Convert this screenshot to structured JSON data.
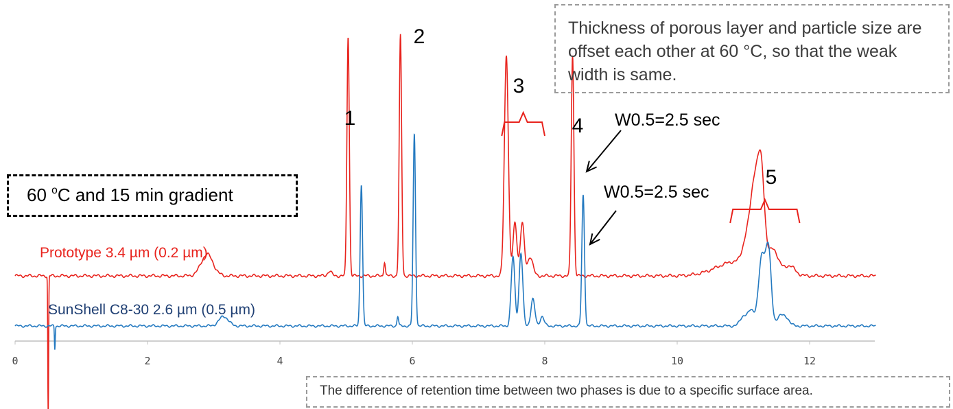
{
  "chart_data": {
    "type": "line",
    "title": "",
    "xlabel": "",
    "ylabel": "",
    "xlim": [
      0,
      13
    ],
    "x_ticks": [
      0,
      2,
      4,
      6,
      8,
      10,
      12
    ],
    "grid": false,
    "series": [
      {
        "name": "Prototype 3.4 µm (0.2 µm)",
        "color": "#e8231d",
        "baseline": 0.0,
        "peaks": [
          {
            "t": 0.5,
            "h": -0.6,
            "w": 0.006
          },
          {
            "t": 2.9,
            "h": 0.09,
            "w": 0.09
          },
          {
            "t": 4.75,
            "h": 0.02,
            "w": 0.03
          },
          {
            "t": 5.03,
            "h": 1.0,
            "w": 0.018
          },
          {
            "t": 5.58,
            "h": 0.06,
            "w": 0.012
          },
          {
            "t": 5.82,
            "h": 1.0,
            "w": 0.018
          },
          {
            "t": 7.42,
            "h": 0.92,
            "w": 0.03
          },
          {
            "t": 7.55,
            "h": 0.22,
            "w": 0.03
          },
          {
            "t": 7.66,
            "h": 0.22,
            "w": 0.03
          },
          {
            "t": 7.78,
            "h": 0.08,
            "w": 0.04
          },
          {
            "t": 8.42,
            "h": 0.92,
            "w": 0.02
          },
          {
            "t": 10.9,
            "h": 0.06,
            "w": 0.3
          },
          {
            "t": 11.05,
            "h": 0.1,
            "w": 0.06
          },
          {
            "t": 11.17,
            "h": 0.33,
            "w": 0.06
          },
          {
            "t": 11.27,
            "h": 0.38,
            "w": 0.05
          },
          {
            "t": 11.45,
            "h": 0.1,
            "w": 0.08
          },
          {
            "t": 11.7,
            "h": 0.04,
            "w": 0.08
          }
        ]
      },
      {
        "name": "SunShell C8-30 2.6 µm (0.5 µm)",
        "color": "#2379c0",
        "baseline": -0.33,
        "peaks": [
          {
            "t": 0.6,
            "h": -0.12,
            "w": 0.006
          },
          {
            "t": 3.15,
            "h": 0.05,
            "w": 0.07
          },
          {
            "t": 5.23,
            "h": 0.74,
            "w": 0.018
          },
          {
            "t": 5.78,
            "h": 0.05,
            "w": 0.012
          },
          {
            "t": 6.03,
            "h": 1.0,
            "w": 0.018
          },
          {
            "t": 7.52,
            "h": 0.36,
            "w": 0.028
          },
          {
            "t": 7.64,
            "h": 0.38,
            "w": 0.028
          },
          {
            "t": 7.82,
            "h": 0.14,
            "w": 0.03
          },
          {
            "t": 7.96,
            "h": 0.05,
            "w": 0.03
          },
          {
            "t": 8.58,
            "h": 0.68,
            "w": 0.02
          },
          {
            "t": 11.0,
            "h": 0.05,
            "w": 0.05
          },
          {
            "t": 11.12,
            "h": 0.08,
            "w": 0.05
          },
          {
            "t": 11.28,
            "h": 0.36,
            "w": 0.05
          },
          {
            "t": 11.38,
            "h": 0.38,
            "w": 0.04
          },
          {
            "t": 11.55,
            "h": 0.05,
            "w": 0.05
          },
          {
            "t": 11.65,
            "h": 0.04,
            "w": 0.05
          }
        ]
      }
    ],
    "peak_labels": [
      {
        "text": "1",
        "t": 5.03,
        "series": 0
      },
      {
        "text": "2",
        "t": 5.82,
        "series": 0
      },
      {
        "text": "3",
        "t": 7.66,
        "series": 0
      },
      {
        "text": "4",
        "t": 8.42,
        "series": 0
      },
      {
        "text": "5",
        "t": 11.3,
        "series": 0
      }
    ],
    "brackets": [
      {
        "t_start": 7.35,
        "t_end": 8.0,
        "color": "#e8231d"
      },
      {
        "t_start": 10.8,
        "t_end": 11.85,
        "color": "#e8231d"
      }
    ],
    "annotations": [
      {
        "text": "W0.5=2.5 sec",
        "t": 8.42,
        "series": 0
      },
      {
        "text": "W0.5=2.5 sec",
        "t": 8.58,
        "series": 1
      }
    ]
  },
  "notes": {
    "top": "Thickness of porous layer and particle size are offset each other at 60 °C, so that the weak width is same.",
    "condition_pre": "60 ",
    "condition_sup": "o",
    "condition_post": "C and 15 min gradient",
    "bottom": "The difference of retention time between two phases is due to a specific surface area."
  }
}
